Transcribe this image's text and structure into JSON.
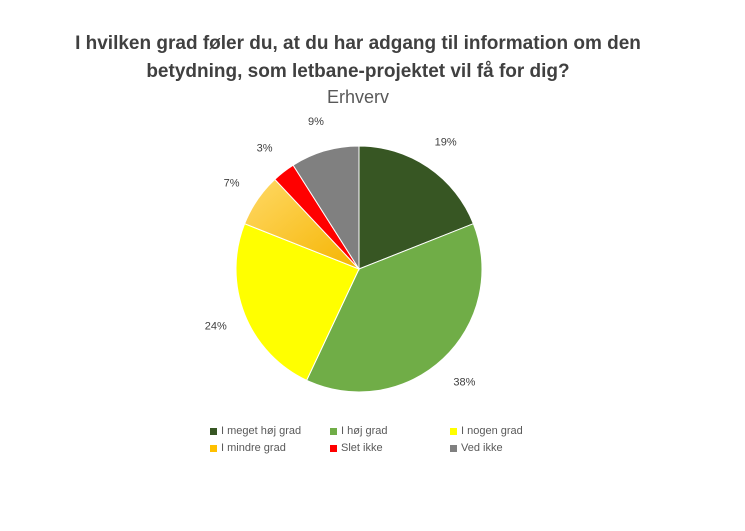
{
  "chart_data": {
    "type": "pie",
    "title": "I hvilken grad føler du, at du har adgang til information om den betydning, som letbane-projektet vil få for dig?",
    "title_lines": [
      "I hvilken grad føler du, at du har adgang til information om den",
      "betydning, som letbane-projektet vil få for dig?"
    ],
    "subtitle": "Erhverv",
    "legend_position": "bottom",
    "slices": [
      {
        "label": "I meget høj grad",
        "value": 19,
        "data_label": "19%",
        "color": "#375623"
      },
      {
        "label": "I høj grad",
        "value": 38,
        "data_label": "38%",
        "color": "#70AD47"
      },
      {
        "label": "I nogen grad",
        "value": 24,
        "data_label": "24%",
        "color": "#FFFF00"
      },
      {
        "label": "I mindre grad",
        "value": 7,
        "data_label": "7%",
        "color": "#FFC000"
      },
      {
        "label": "Slet ikke",
        "value": 3,
        "data_label": "3%",
        "color": "#FF0000"
      },
      {
        "label": "Ved ikke",
        "value": 9,
        "data_label": "9%",
        "color": "#808080"
      }
    ]
  }
}
